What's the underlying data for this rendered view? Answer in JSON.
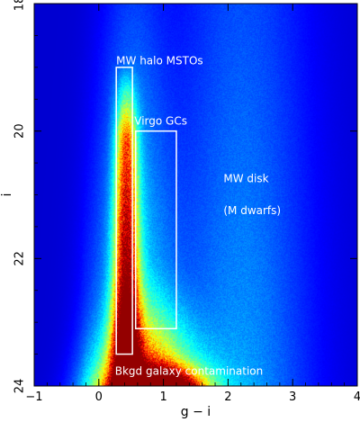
{
  "chart_data": {
    "type": "heatmap",
    "title": "",
    "xlabel": "g − i",
    "ylabel": "i",
    "xlim": [
      -1,
      4
    ],
    "ylim": [
      24,
      18
    ],
    "y_axis_inverted": true,
    "x_ticks": [
      {
        "value": -1,
        "label": "−1"
      },
      {
        "value": 0,
        "label": "0"
      },
      {
        "value": 1,
        "label": "1"
      },
      {
        "value": 2,
        "label": "2"
      },
      {
        "value": 3,
        "label": "3"
      },
      {
        "value": 4,
        "label": "4"
      }
    ],
    "y_ticks": [
      {
        "value": 18,
        "label": "18"
      },
      {
        "value": 20,
        "label": "20"
      },
      {
        "value": 22,
        "label": "22"
      },
      {
        "value": 24,
        "label": "24"
      }
    ],
    "grid": false,
    "colormap": "jet (dark blue → cyan → yellow → red)",
    "background_color": "#0a1a6e",
    "density_features": [
      {
        "description_color_index": "main sequence ridge",
        "g_i_center": 0.45,
        "i_from": 18.9,
        "i_to": 24,
        "peak_level": 1.0
      },
      {
        "description_color_index": "faint blue plume",
        "g_i_center": 0.75,
        "i_from": 22.0,
        "i_to": 24,
        "peak_level": 0.8
      },
      {
        "description_color_index": "red disk dwarfs",
        "g_i_center": 2.2,
        "i_from": 18.0,
        "i_to": 24,
        "peak_level": 0.35
      }
    ],
    "regions": [
      {
        "name": "MW halo MSTOs",
        "g_i_min": 0.27,
        "g_i_max": 0.52,
        "i_min": 19.0,
        "i_max": 23.5
      },
      {
        "name": "Virgo GCs",
        "g_i_min": 0.57,
        "g_i_max": 1.2,
        "i_min": 20.0,
        "i_max": 23.1
      }
    ],
    "annotations": [
      {
        "text": "MW halo MSTOs",
        "g_i": 0.27,
        "i": 18.95
      },
      {
        "text": "Virgo GCs",
        "g_i": 0.55,
        "i": 19.9
      },
      {
        "text": "MW disk",
        "g_i": 1.93,
        "i": 20.8
      },
      {
        "text": "(M dwarfs)",
        "g_i": 1.93,
        "i": 21.3
      },
      {
        "text": "Bkgd galaxy contamination",
        "g_i": 0.25,
        "i": 23.82
      }
    ],
    "region_color": "#ffffff",
    "annotation_color": "#ffffff"
  }
}
